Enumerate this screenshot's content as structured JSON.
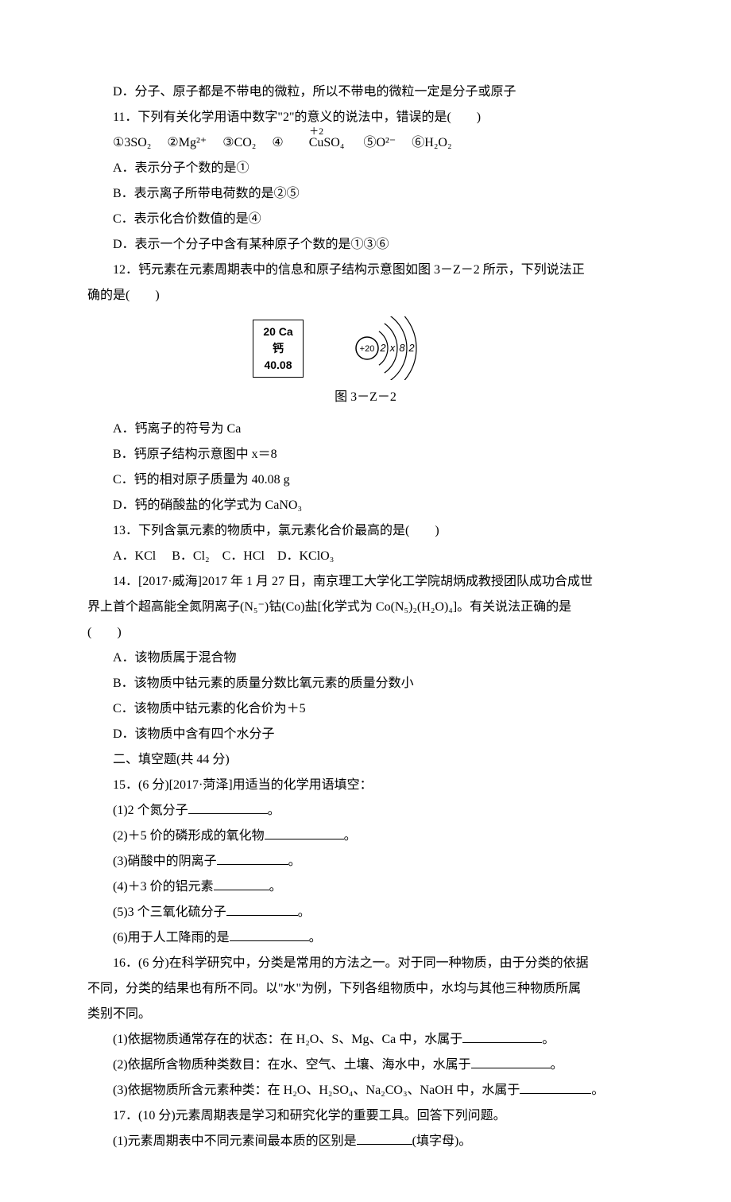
{
  "q10": {
    "optD": "D．分子、原子都是不带电的微粒，所以不带电的微粒一定是分子或原子"
  },
  "q11": {
    "stem": "11．下列有关化学用语中数字\"2\"的意义的说法中，错误的是(　　)",
    "items_prefix": "①3SO",
    "items_html_parts": {
      "i1": "①3SO₂",
      "i2": "②Mg²⁺",
      "i3": "③CO₂",
      "i4_pre": "④",
      "i4_top": "＋2",
      "i4_base": "Cu",
      "i4_post": "SO₄",
      "i5": "⑤O²⁻",
      "i6": "⑥H₂O₂"
    },
    "optA": "A．表示分子个数的是①",
    "optB": "B．表示离子所带电荷数的是②⑤",
    "optC": "C．表示化合价数值的是④",
    "optD": "D．表示一个分子中含有某种原子个数的是①③⑥"
  },
  "q12": {
    "stem1": "12．钙元素在元素周期表中的信息和原子结构示意图如图 3－Z－2 所示，下列说法正",
    "stem2": "确的是(　　)",
    "element_box": {
      "line1": "20  Ca",
      "line2": "钙",
      "line3": "40.08"
    },
    "atom": {
      "nucleus": "+20",
      "shells": [
        "2",
        "x",
        "8",
        "2"
      ],
      "nucleus_radius": 14,
      "arc_radii": [
        26,
        38,
        50,
        62
      ],
      "stroke": "#000000"
    },
    "caption": "图 3－Z－2",
    "optA": "A．钙离子的符号为 Ca",
    "optB": "B．钙原子结构示意图中 x＝8",
    "optC": "C．钙的相对原子质量为 40.08 g",
    "optD": "D．钙的硝酸盐的化学式为 CaNO₃"
  },
  "q13": {
    "stem": "13．下列含氯元素的物质中，氯元素化合价最高的是(　　)",
    "opts": "A．KCl　 B．Cl₂　C．HCl　D．KClO₃"
  },
  "q14": {
    "stem1": "14．[2017·威海]2017 年 1 月 27 日，南京理工大学化工学院胡炳成教授团队成功合成世",
    "stem2": "界上首个超高能全氮阴离子(N₅⁻)钴(Co)盐[化学式为 Co(N₅)₂(H₂O)₄]。有关说法正确的是",
    "stem3": "(　　)",
    "optA": "A．该物质属于混合物",
    "optB": "B．该物质中钴元素的质量分数比氧元素的质量分数小",
    "optC": "C．该物质中钴元素的化合价为＋5",
    "optD": "D．该物质中含有四个水分子"
  },
  "section2": "二、填空题(共 44 分)",
  "q15": {
    "stem": "15．(6 分)[2017·菏泽]用适当的化学用语填空：",
    "p1": "(1)2 个氮分子",
    "p1_end": "。",
    "p2": "(2)＋5 价的磷形成的氧化物",
    "p2_end": "。",
    "p3": "(3)硝酸中的阴离子",
    "p3_end": "。",
    "p4": "(4)＋3 价的铝元素",
    "p4_end": "。",
    "p5": "(5)3 个三氧化硫分子",
    "p5_end": "。",
    "p6": "(6)用于人工降雨的是",
    "p6_end": "。"
  },
  "q16": {
    "stem1": "16．(6 分)在科学研究中，分类是常用的方法之一。对于同一种物质，由于分类的依据",
    "stem2": "不同，分类的结果也有所不同。以\"水\"为例，下列各组物质中，水均与其他三种物质所属",
    "stem3": "类别不同。",
    "p1": "(1)依据物质通常存在的状态：在 H₂O、S、Mg、Ca 中，水属于",
    "p1_end": "。",
    "p2": "(2)依据所含物质种类数目：在水、空气、土壤、海水中，水属于",
    "p2_end": "。",
    "p3": "(3)依据物质所含元素种类：在 H₂O、H₂SO₄、Na₂CO₃、NaOH 中，水属于",
    "p3_end": "。"
  },
  "q17": {
    "stem": "17．(10 分)元素周期表是学习和研究化学的重要工具。回答下列问题。",
    "p1_a": "(1)元素周期表中不同元素间最本质的区别是",
    "p1_b": "(填字母)。"
  }
}
